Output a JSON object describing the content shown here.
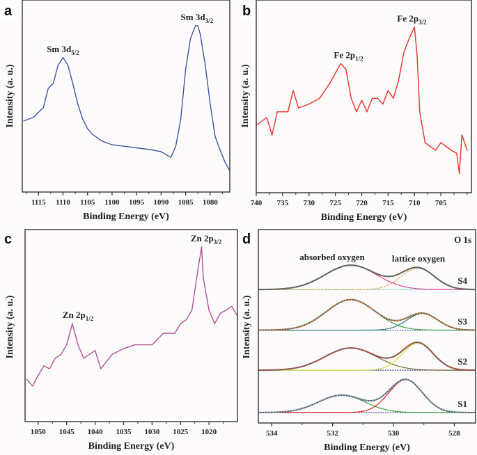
{
  "chart_data": [
    {
      "panel": "a",
      "type": "line",
      "xlabel": "Binding Energy (eV)",
      "ylabel": "Intensity (a. u.)",
      "xlim": [
        1118.3,
        1076.0
      ],
      "x_reversed": true,
      "xticks": [
        1115,
        1110,
        1105,
        1100,
        1095,
        1090,
        1085,
        1080
      ],
      "grid": false,
      "color": "#3f55a3",
      "annotations": [
        {
          "main": "Sm 3d",
          "sub": "5/2",
          "x": 1110
        },
        {
          "main": "Sm 3d",
          "sub": "3/2",
          "x": 1082.7
        }
      ],
      "x": [
        1118,
        1116,
        1114,
        1113,
        1112,
        1111,
        1110,
        1109,
        1108,
        1107,
        1106,
        1105,
        1104,
        1102,
        1100,
        1098,
        1095,
        1092,
        1090,
        1088,
        1087,
        1086,
        1085,
        1084,
        1083,
        1082.5,
        1082,
        1081,
        1080,
        1079,
        1078,
        1077,
        1076
      ],
      "y": [
        0.37,
        0.39,
        0.44,
        0.54,
        0.565,
        0.66,
        0.7,
        0.66,
        0.565,
        0.46,
        0.38,
        0.33,
        0.3,
        0.265,
        0.246,
        0.24,
        0.23,
        0.22,
        0.21,
        0.18,
        0.24,
        0.38,
        0.64,
        0.8,
        0.866,
        0.866,
        0.82,
        0.66,
        0.46,
        0.29,
        0.22,
        0.156,
        0.11
      ]
    },
    {
      "panel": "b",
      "type": "line",
      "xlabel": "Binding Energy (eV)",
      "ylabel": "Intensity (a. u.)",
      "xlim": [
        740,
        699.2
      ],
      "x_reversed": true,
      "xticks": [
        740,
        735,
        730,
        725,
        720,
        715,
        710,
        705
      ],
      "grid": false,
      "color": "#e8302a",
      "annotations": [
        {
          "main": "Fe 2p",
          "sub": "1/2",
          "x": 722.5
        },
        {
          "main": "Fe 2p",
          "sub": "3/2",
          "x": 710.5
        }
      ],
      "x": [
        740,
        738,
        737,
        736,
        734,
        733,
        732,
        730,
        728,
        726,
        725,
        724,
        723,
        722,
        721,
        720,
        719,
        718,
        717,
        716,
        715,
        714,
        713,
        712,
        711,
        710,
        709.5,
        709,
        708,
        707,
        706,
        705,
        704,
        703,
        702,
        701.5,
        701,
        700
      ],
      "y": [
        0.35,
        0.39,
        0.3,
        0.42,
        0.42,
        0.53,
        0.44,
        0.46,
        0.49,
        0.57,
        0.62,
        0.67,
        0.64,
        0.49,
        0.42,
        0.48,
        0.42,
        0.49,
        0.49,
        0.46,
        0.53,
        0.49,
        0.585,
        0.73,
        0.8,
        0.86,
        0.71,
        0.42,
        0.26,
        0.24,
        0.22,
        0.26,
        0.24,
        0.22,
        0.205,
        0.1,
        0.3,
        0.22
      ]
    },
    {
      "panel": "c",
      "type": "line",
      "xlabel": "Binding Energy (eV)",
      "ylabel": "Intensity (a. u.)",
      "xlim": [
        1052.3,
        1015.0
      ],
      "x_reversed": true,
      "xticks": [
        1050,
        1045,
        1040,
        1035,
        1030,
        1025,
        1020
      ],
      "grid": false,
      "color": "#b5509a",
      "annotations": [
        {
          "main": "Zn 2p",
          "sub": "1/2",
          "x": 1043
        },
        {
          "main": "Zn 2p",
          "sub": "3/2",
          "x": 1020.5
        }
      ],
      "x": [
        1052,
        1051,
        1050,
        1049,
        1048,
        1047,
        1046,
        1045,
        1044,
        1043,
        1042,
        1040,
        1039,
        1037,
        1035,
        1033,
        1031,
        1030,
        1028,
        1026,
        1025,
        1024,
        1023,
        1022,
        1021.3,
        1021,
        1020,
        1019,
        1018,
        1017,
        1016,
        1015
      ],
      "y": [
        0.22,
        0.185,
        0.24,
        0.29,
        0.275,
        0.33,
        0.35,
        0.4,
        0.51,
        0.4,
        0.33,
        0.37,
        0.275,
        0.35,
        0.38,
        0.4,
        0.4,
        0.4,
        0.46,
        0.46,
        0.51,
        0.53,
        0.58,
        0.78,
        0.91,
        0.75,
        0.58,
        0.51,
        0.565,
        0.58,
        0.6,
        0.55
      ]
    },
    {
      "panel": "d",
      "type": "line",
      "title": "O 1s",
      "xlabel": "Binding Energy (eV)",
      "ylabel": "Intensity (a. u.)",
      "xlim": [
        534.44,
        527.3
      ],
      "x_reversed": true,
      "xticks": [
        534,
        532,
        530,
        528
      ],
      "grid": false,
      "peak_labels": {
        "absorbed": "absorbed oxygen",
        "lattice": "lattice oxygen"
      },
      "samples": [
        {
          "name": "S4",
          "offset": 0.69,
          "envelope_color": "#7d6f62",
          "baseline_color": "#4fc6c6",
          "components": [
            {
              "label": "absorbed",
              "center": 531.4,
              "fwhm": 2.0,
              "height": 0.126,
              "color": "#e0409a",
              "dashed": false
            },
            {
              "label": "lattice",
              "center": 529.2,
              "fwhm": 1.3,
              "height": 0.11,
              "color": "#e0a030",
              "dashed": true
            }
          ]
        },
        {
          "name": "S3",
          "offset": 0.48,
          "envelope_color": "#f08a30",
          "baseline_color": "#3a3aa0",
          "components": [
            {
              "label": "absorbed",
              "center": 531.4,
              "fwhm": 1.9,
              "height": 0.158,
              "color": "#3da040",
              "dashed": false
            },
            {
              "label": "lattice",
              "center": 529.05,
              "fwhm": 1.2,
              "height": 0.086,
              "color": "#2a7a7a",
              "dashed": false
            }
          ]
        },
        {
          "name": "S2",
          "offset": 0.273,
          "envelope_color": "#e8503a",
          "baseline_color": "#3a3aa0",
          "components": [
            {
              "label": "absorbed",
              "center": 531.4,
              "fwhm": 2.0,
              "height": 0.115,
              "color": "#7a6a30",
              "dashed": false
            },
            {
              "label": "lattice",
              "center": 529.2,
              "fwhm": 1.2,
              "height": 0.14,
              "color": "#c8e040",
              "dashed": false
            }
          ]
        },
        {
          "name": "S1",
          "offset": 0.054,
          "envelope_color": "#8ab4d8",
          "baseline_color": "#3a3aa0",
          "components": [
            {
              "label": "absorbed",
              "center": 531.7,
              "fwhm": 1.8,
              "height": 0.09,
              "color": "#3da040",
              "dashed": false
            },
            {
              "label": "lattice",
              "center": 529.6,
              "fwhm": 1.3,
              "height": 0.17,
              "color": "#e02020",
              "dashed": false
            }
          ]
        }
      ]
    }
  ]
}
